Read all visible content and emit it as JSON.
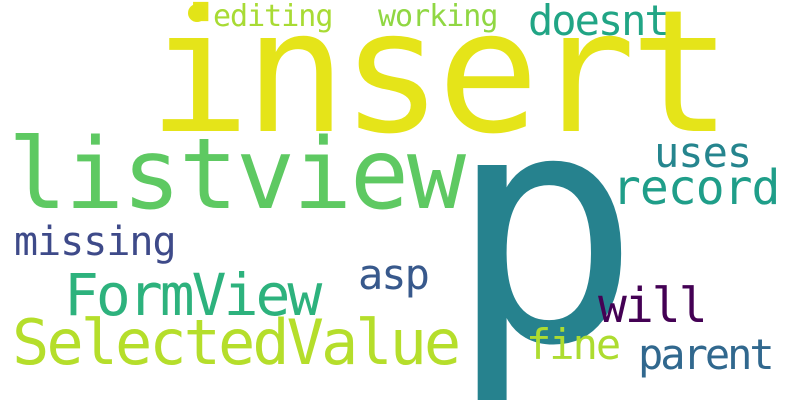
{
  "words": {
    "insert": {
      "text": "insert",
      "color": "#e5e419"
    },
    "p": {
      "text": "p",
      "color": "#26828e"
    },
    "listview": {
      "text": "listview",
      "color": "#5ec962"
    },
    "selectedvalue": {
      "text": "SelectedValue",
      "color": "#b5de2b"
    },
    "formview": {
      "text": "FormView",
      "color": "#2db27d"
    },
    "record": {
      "text": "record",
      "color": "#1f9e89"
    },
    "uses": {
      "text": "uses",
      "color": "#25858e"
    },
    "doesnt": {
      "text": "doesnt",
      "color": "#21a585"
    },
    "working": {
      "text": "working",
      "color": "#90d743"
    },
    "editing": {
      "text": "editing",
      "color": "#a8db34"
    },
    "missing": {
      "text": "missing",
      "color": "#3e4a89"
    },
    "asp": {
      "text": "asp",
      "color": "#38598c"
    },
    "will": {
      "text": "will",
      "color": "#440154"
    },
    "fine": {
      "text": "fine",
      "color": "#addc30"
    },
    "parent": {
      "text": "parent",
      "color": "#31688e"
    }
  },
  "dot": {
    "color": "#e2e418"
  }
}
